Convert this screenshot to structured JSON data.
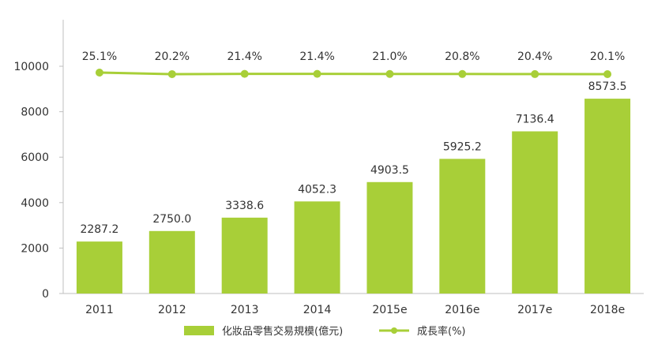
{
  "chart_data": {
    "type": "bar",
    "categories": [
      "2011",
      "2012",
      "2013",
      "2014",
      "2015e",
      "2016e",
      "2017e",
      "2018e"
    ],
    "series": [
      {
        "name": "化妝品零售交易規模(億元)",
        "type": "bar",
        "values": [
          2287.2,
          2750.0,
          3338.6,
          4052.3,
          4903.5,
          5925.2,
          7136.4,
          8573.5
        ],
        "labels": [
          "2287.2",
          "2750.0",
          "3338.6",
          "4052.3",
          "4903.5",
          "5925.2",
          "7136.4",
          "8573.5"
        ],
        "color": "#a8cf38"
      },
      {
        "name": "成長率(%)",
        "type": "line",
        "values": [
          25.1,
          20.2,
          21.4,
          21.4,
          21.0,
          20.8,
          20.4,
          20.1
        ],
        "labels": [
          "25.1%",
          "20.2%",
          "21.4%",
          "21.4%",
          "21.0%",
          "20.8%",
          "20.4%",
          "20.1%"
        ],
        "color": "#a8cf38"
      }
    ],
    "y_ticks": [
      "0",
      "2000",
      "4000",
      "6000",
      "8000",
      "10000"
    ],
    "ylim": [
      0,
      10000
    ],
    "legend_position": "bottom"
  }
}
